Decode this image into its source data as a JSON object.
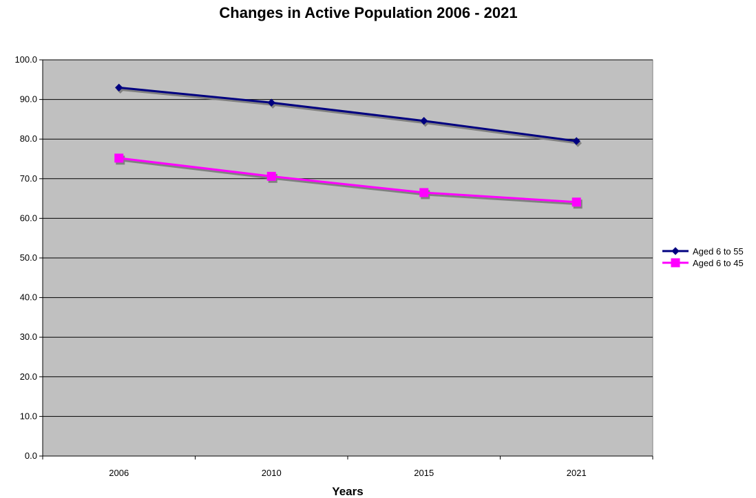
{
  "chart_data": {
    "type": "line",
    "title": "Changes in Active Population 2006 - 2021",
    "xlabel": "Years",
    "ylabel": "",
    "categories": [
      "2006",
      "2010",
      "2015",
      "2021"
    ],
    "ylim": [
      0,
      100
    ],
    "ytick_step": 10,
    "ytick_labels": [
      "0.0",
      "10.0",
      "20.0",
      "30.0",
      "40.0",
      "50.0",
      "60.0",
      "70.0",
      "80.0",
      "90.0",
      "100.0"
    ],
    "grid": true,
    "legend_position": "right",
    "plot_background": "#c0c0c0",
    "series": [
      {
        "name": "Aged 6 to 55",
        "values": [
          93.0,
          89.2,
          84.6,
          79.5
        ],
        "color": "#000080",
        "marker": "diamond"
      },
      {
        "name": "Aged 6 to 45",
        "values": [
          75.2,
          70.6,
          66.5,
          64.1
        ],
        "color": "#ff00ff",
        "marker": "square"
      }
    ]
  }
}
